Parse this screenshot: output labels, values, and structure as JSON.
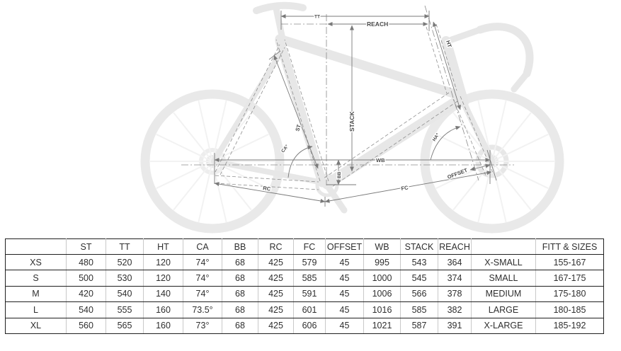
{
  "diagram": {
    "description": "Road bike frame geometry line drawing over faded bicycle photo",
    "line_color": "#7a7a7a",
    "photo_color": "#e9e9e9",
    "labels": {
      "tt": "TT",
      "reach": "REACH",
      "ht": "HT",
      "st": "ST",
      "ca": "CA°",
      "stack": "STACK",
      "wb": "WB",
      "bb": "BB",
      "rc": "RC",
      "fc": "FC",
      "offset": "OFFSET",
      "ha": "HA°"
    }
  },
  "table": {
    "columns": [
      "",
      "ST",
      "TT",
      "HT",
      "CA",
      "BB",
      "RC",
      "FC",
      "OFFSET",
      "WB",
      "STACK",
      "REACH",
      "",
      "FITT & SIZES"
    ],
    "rows": [
      [
        "XS",
        "480",
        "520",
        "120",
        "74°",
        "68",
        "425",
        "579",
        "45",
        "995",
        "543",
        "364",
        "X-SMALL",
        "155-167"
      ],
      [
        "S",
        "500",
        "530",
        "120",
        "74°",
        "68",
        "425",
        "585",
        "45",
        "1000",
        "545",
        "374",
        "SMALL",
        "167-175"
      ],
      [
        "M",
        "420",
        "540",
        "140",
        "74°",
        "68",
        "425",
        "591",
        "45",
        "1006",
        "566",
        "378",
        "MEDIUM",
        "175-180"
      ],
      [
        "L",
        "540",
        "555",
        "160",
        "73.5°",
        "68",
        "425",
        "601",
        "45",
        "1016",
        "585",
        "382",
        "LARGE",
        "180-185"
      ],
      [
        "XL",
        "560",
        "565",
        "160",
        "73°",
        "68",
        "425",
        "606",
        "45",
        "1021",
        "587",
        "391",
        "X-LARGE",
        "185-192"
      ]
    ]
  }
}
